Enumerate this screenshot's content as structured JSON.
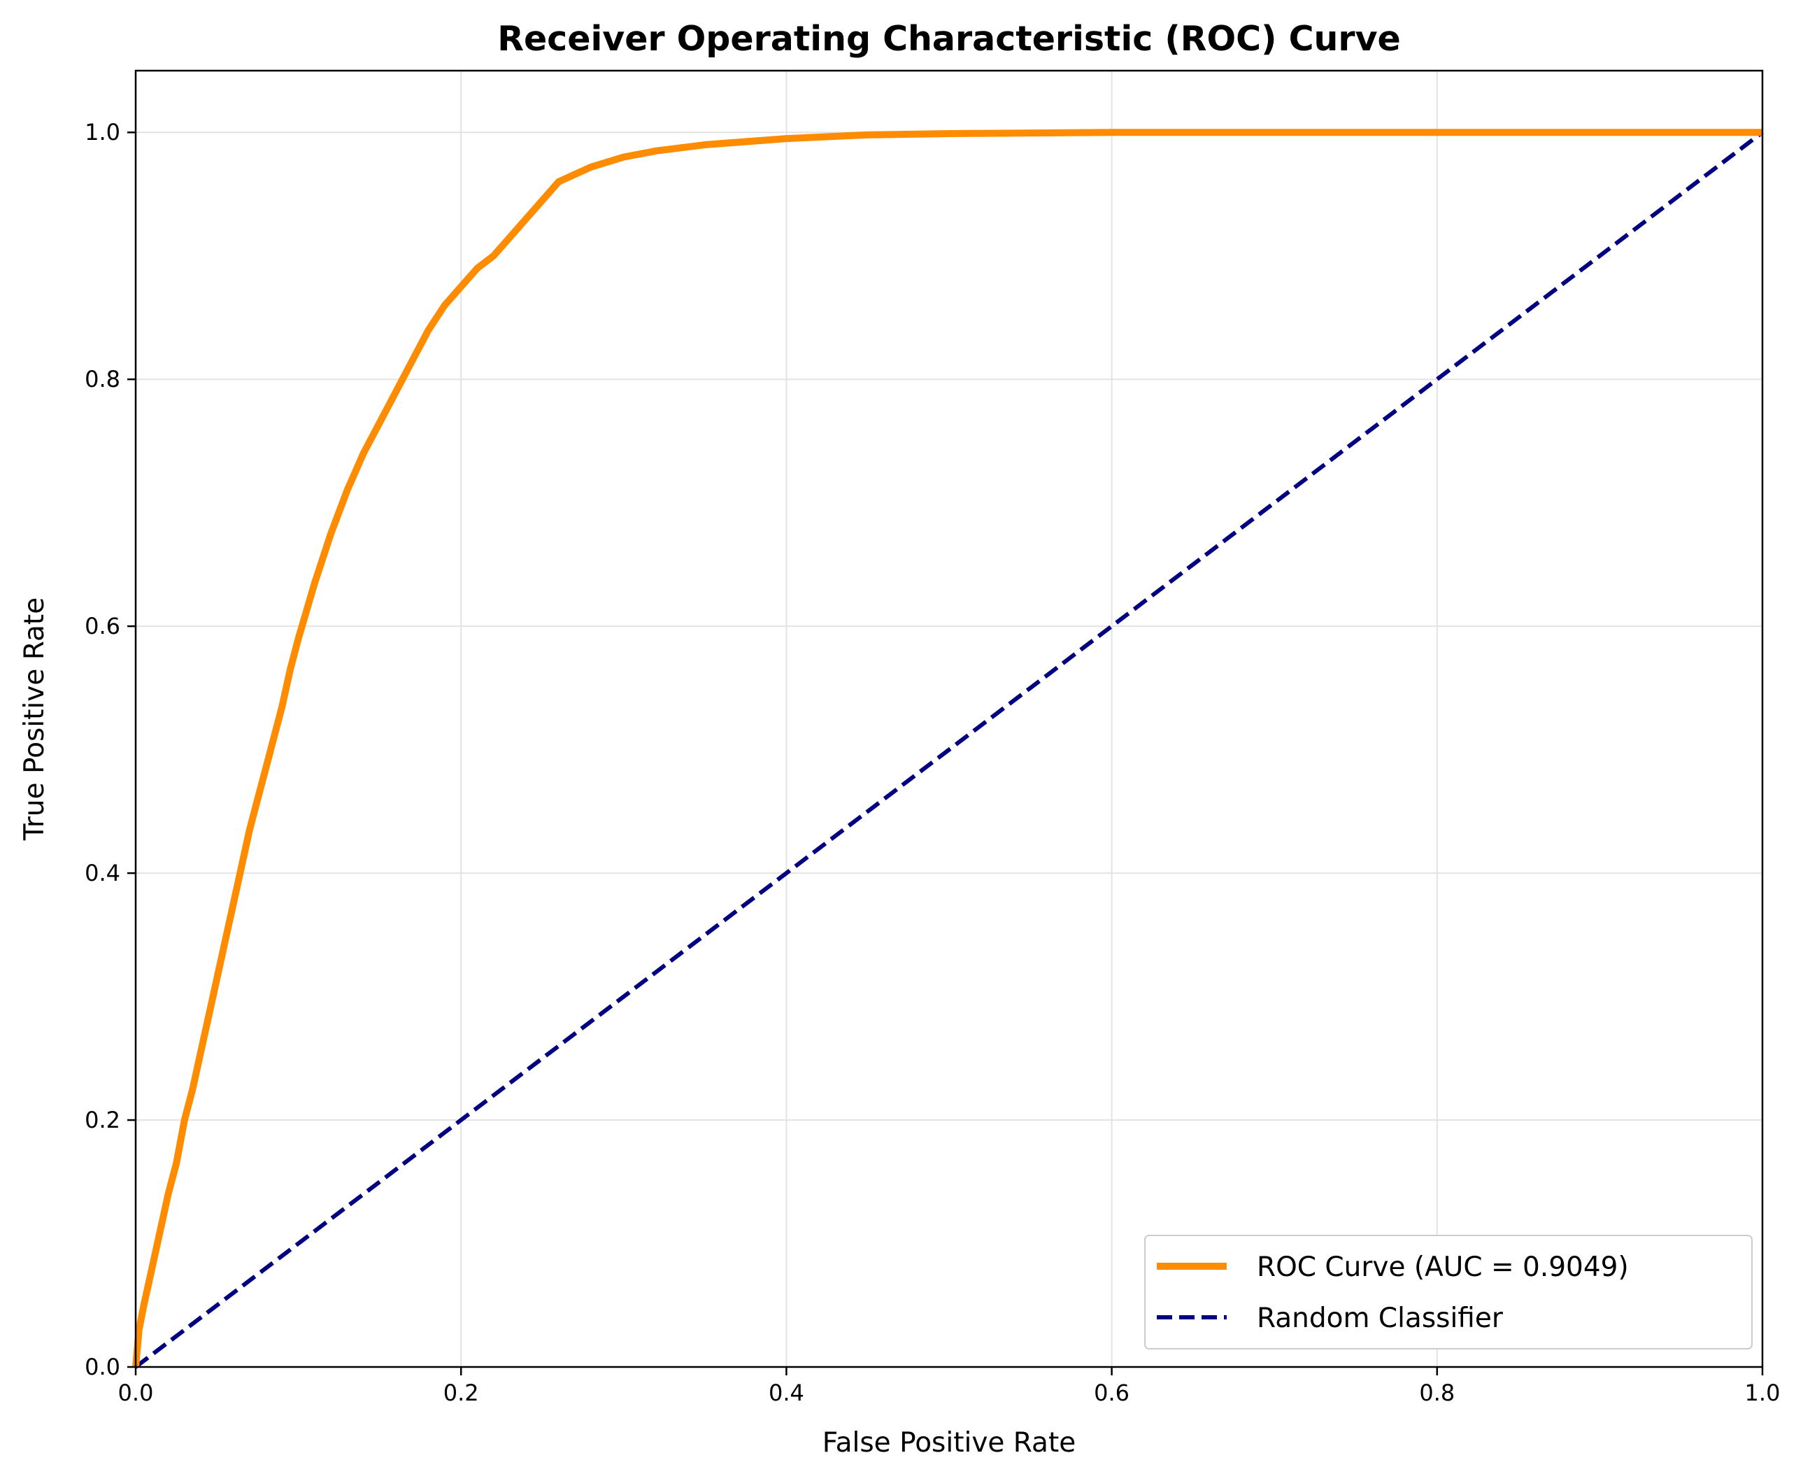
{
  "chart_data": {
    "type": "line",
    "title": "Receiver Operating Characteristic (ROC) Curve",
    "xlabel": "False Positive Rate",
    "ylabel": "True Positive Rate",
    "xlim": [
      0.0,
      1.0
    ],
    "ylim": [
      0.0,
      1.05
    ],
    "x_ticks": [
      "0.0",
      "0.2",
      "0.4",
      "0.6",
      "0.8",
      "1.0"
    ],
    "y_ticks": [
      "0.0",
      "0.2",
      "0.4",
      "0.6",
      "0.8",
      "1.0"
    ],
    "grid": true,
    "legend_position": "lower-right",
    "series": [
      {
        "name": "ROC Curve (AUC = 0.9049)",
        "color": "#ff8c00",
        "style": "solid",
        "points": [
          [
            0.0,
            0.0
          ],
          [
            0.002,
            0.03
          ],
          [
            0.005,
            0.05
          ],
          [
            0.01,
            0.08
          ],
          [
            0.015,
            0.11
          ],
          [
            0.02,
            0.14
          ],
          [
            0.025,
            0.165
          ],
          [
            0.03,
            0.2
          ],
          [
            0.035,
            0.225
          ],
          [
            0.04,
            0.255
          ],
          [
            0.045,
            0.285
          ],
          [
            0.05,
            0.315
          ],
          [
            0.055,
            0.345
          ],
          [
            0.06,
            0.375
          ],
          [
            0.065,
            0.405
          ],
          [
            0.07,
            0.435
          ],
          [
            0.075,
            0.46
          ],
          [
            0.08,
            0.485
          ],
          [
            0.085,
            0.51
          ],
          [
            0.09,
            0.535
          ],
          [
            0.095,
            0.565
          ],
          [
            0.1,
            0.59
          ],
          [
            0.11,
            0.635
          ],
          [
            0.12,
            0.675
          ],
          [
            0.13,
            0.71
          ],
          [
            0.14,
            0.74
          ],
          [
            0.15,
            0.765
          ],
          [
            0.16,
            0.79
          ],
          [
            0.17,
            0.815
          ],
          [
            0.18,
            0.84
          ],
          [
            0.19,
            0.86
          ],
          [
            0.2,
            0.875
          ],
          [
            0.21,
            0.89
          ],
          [
            0.22,
            0.9
          ],
          [
            0.23,
            0.915
          ],
          [
            0.24,
            0.93
          ],
          [
            0.25,
            0.945
          ],
          [
            0.26,
            0.96
          ],
          [
            0.27,
            0.966
          ],
          [
            0.28,
            0.972
          ],
          [
            0.3,
            0.98
          ],
          [
            0.32,
            0.985
          ],
          [
            0.35,
            0.99
          ],
          [
            0.4,
            0.995
          ],
          [
            0.45,
            0.998
          ],
          [
            0.5,
            0.999
          ],
          [
            0.6,
            1.0
          ],
          [
            0.8,
            1.0
          ],
          [
            1.0,
            1.0
          ]
        ]
      },
      {
        "name": "Random Classifier",
        "color": "#000080",
        "style": "dashed",
        "points": [
          [
            0.0,
            0.0
          ],
          [
            1.0,
            1.0
          ]
        ]
      }
    ]
  }
}
